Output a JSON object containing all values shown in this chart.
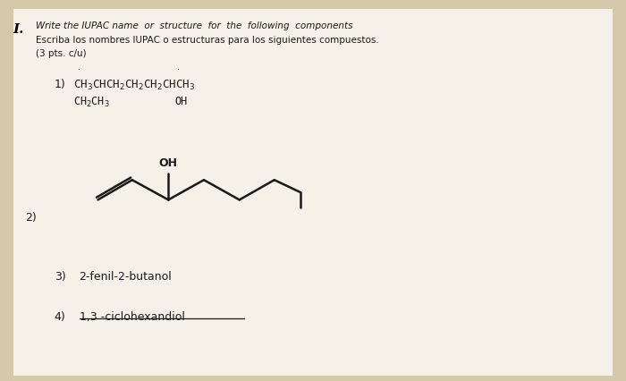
{
  "background_color": "#d4c9a8",
  "page_color": "#f5f0e8",
  "roman_numeral": "I.",
  "title_line1": "Write the IUPAC name  or  structure  for  the  following  components",
  "title_line2": "Escriba los nombres IUPAC o estructuras para los siguientes compuestos.",
  "title_line3": "(3 pts. c/u)",
  "item1_num": "1)",
  "item2_num": "2)",
  "item3_num": "3)",
  "item3_text": "2-fenil-2-butanol",
  "item4_num": "4)",
  "item4_text": "1,3 -ciclohexandiol"
}
